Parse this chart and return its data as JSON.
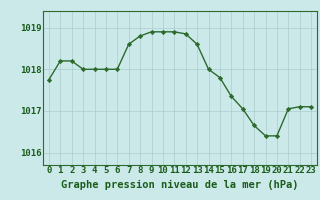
{
  "x": [
    0,
    1,
    2,
    3,
    4,
    5,
    6,
    7,
    8,
    9,
    10,
    11,
    12,
    13,
    14,
    15,
    16,
    17,
    18,
    19,
    20,
    21,
    22,
    23
  ],
  "y": [
    1017.75,
    1018.2,
    1018.2,
    1018.0,
    1018.0,
    1018.0,
    1018.0,
    1018.6,
    1018.8,
    1018.9,
    1018.9,
    1018.9,
    1018.85,
    1018.6,
    1018.0,
    1017.8,
    1017.35,
    1017.05,
    1016.65,
    1016.4,
    1016.4,
    1017.05,
    1017.1,
    1017.1
  ],
  "line_color": "#2d6a2d",
  "marker": "D",
  "marker_size": 2.2,
  "bg_color": "#cce9ea",
  "grid_color": "#aacccc",
  "ylabel_ticks": [
    1016,
    1017,
    1018,
    1019
  ],
  "ylim": [
    1015.7,
    1019.4
  ],
  "xlim": [
    -0.5,
    23.5
  ],
  "xlabel": "Graphe pression niveau de la mer (hPa)",
  "xlabel_color": "#1a5c1a",
  "xlabel_fontsize": 7.5,
  "tick_fontsize": 6.5,
  "tick_color": "#1a5c1a",
  "axis_color": "#2d6a2d",
  "linewidth": 1.0
}
